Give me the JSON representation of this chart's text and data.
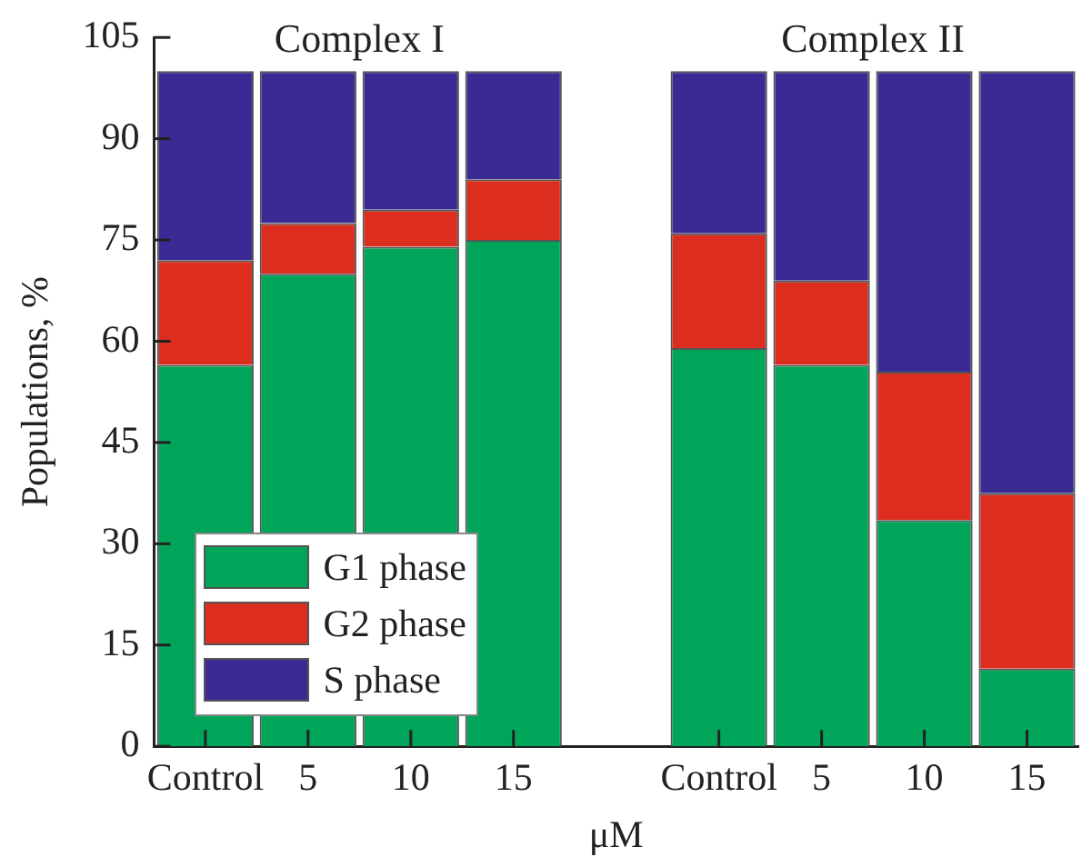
{
  "chart_data": {
    "type": "bar",
    "stacked": true,
    "xlabel": "μM",
    "ylabel": "Populations, %",
    "categories": [
      "Control",
      "5",
      "10",
      "15",
      null,
      "Control",
      "5",
      "10",
      "15"
    ],
    "series": [
      {
        "name": "G1 phase",
        "color": "#00a55a",
        "values": [
          56.5,
          70,
          74,
          75,
          null,
          59,
          56.5,
          33.5,
          11.5
        ]
      },
      {
        "name": "G2 phase",
        "color": "#dc2d1e",
        "values": [
          15.5,
          7.5,
          5.5,
          9,
          null,
          17,
          12.5,
          22,
          26
        ]
      },
      {
        "name": "S phase",
        "color": "#3a2b94",
        "values": [
          28,
          22.5,
          20.5,
          16,
          null,
          24,
          31,
          44.5,
          62.5
        ]
      }
    ],
    "ylim": [
      0,
      105
    ],
    "yticks": [
      0,
      15,
      30,
      45,
      60,
      75,
      90,
      105
    ],
    "grid": false,
    "legend": "bottom left",
    "annotations": [
      "Complex I",
      "Complex II"
    ]
  }
}
